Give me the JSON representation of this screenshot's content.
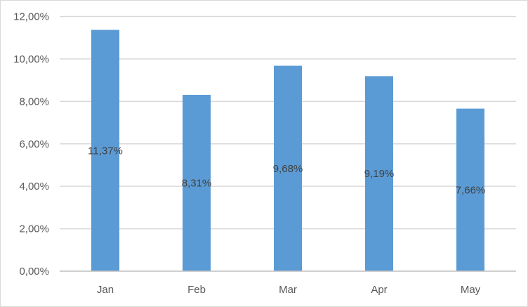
{
  "chart_data": {
    "type": "bar",
    "title": "",
    "xlabel": "",
    "ylabel": "",
    "categories": [
      "Jan",
      "Feb",
      "Mar",
      "Apr",
      "May"
    ],
    "values": [
      11.37,
      8.31,
      9.68,
      9.19,
      7.66
    ],
    "data_labels": [
      "11,37%",
      "8,31%",
      "9,68%",
      "9,19%",
      "7,66%"
    ],
    "ylim": [
      0,
      12
    ],
    "yticks": [
      0,
      2,
      4,
      6,
      8,
      10,
      12
    ],
    "ytick_labels": [
      "0,00%",
      "2,00%",
      "4,00%",
      "6,00%",
      "8,00%",
      "10,00%",
      "12,00%"
    ],
    "grid": true,
    "legend": "none",
    "colors": {
      "bar": "#5b9bd5",
      "grid": "#d9d9d9",
      "axis": "#bfbfbf"
    }
  }
}
